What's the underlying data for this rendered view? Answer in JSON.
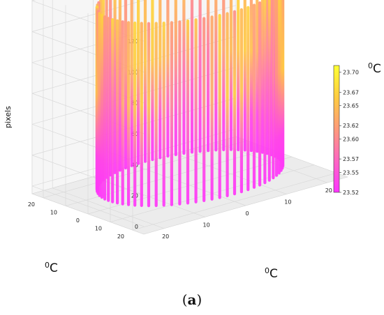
{
  "caption": {
    "open": "(",
    "letter": "a",
    "close": ")"
  },
  "chart_data": {
    "type": "scatter",
    "projection": "3d",
    "grid": true,
    "z_axis": {
      "label": "pixels",
      "ticks": [
        0,
        20,
        40,
        60,
        80,
        100,
        120
      ],
      "range": [
        -5,
        125
      ]
    },
    "x_axis": {
      "label": "⁰C",
      "label_base": "C",
      "label_superscript": "0",
      "ticks": [
        -20,
        -10,
        0,
        10,
        20
      ],
      "tick_labels": [
        "20",
        "10",
        "0",
        "10",
        "20"
      ],
      "range": [
        -25,
        25
      ]
    },
    "y_axis": {
      "label": "⁰C",
      "label_base": "C",
      "label_superscript": "0",
      "ticks": [
        -20,
        -10,
        0,
        10,
        20
      ],
      "tick_labels": [
        "20",
        "10",
        "0",
        "10",
        "20"
      ],
      "range": [
        -25,
        25
      ]
    },
    "shape": {
      "description": "cylinder of vertical point columns",
      "radius": 20,
      "columns": 72,
      "z_min": 0,
      "z_max": 118
    },
    "colorbar": {
      "label": "⁰C",
      "label_base": "C",
      "label_superscript": "0",
      "min": 23.52,
      "max": 23.71,
      "ticks": [
        "23.70",
        "23.67",
        "23.65",
        "23.62",
        "23.60",
        "23.57",
        "23.55",
        "23.52"
      ],
      "colors": [
        "#ff33ff",
        "#ff66c2",
        "#ff9a7a",
        "#ffcc40",
        "#ffff33"
      ]
    }
  }
}
